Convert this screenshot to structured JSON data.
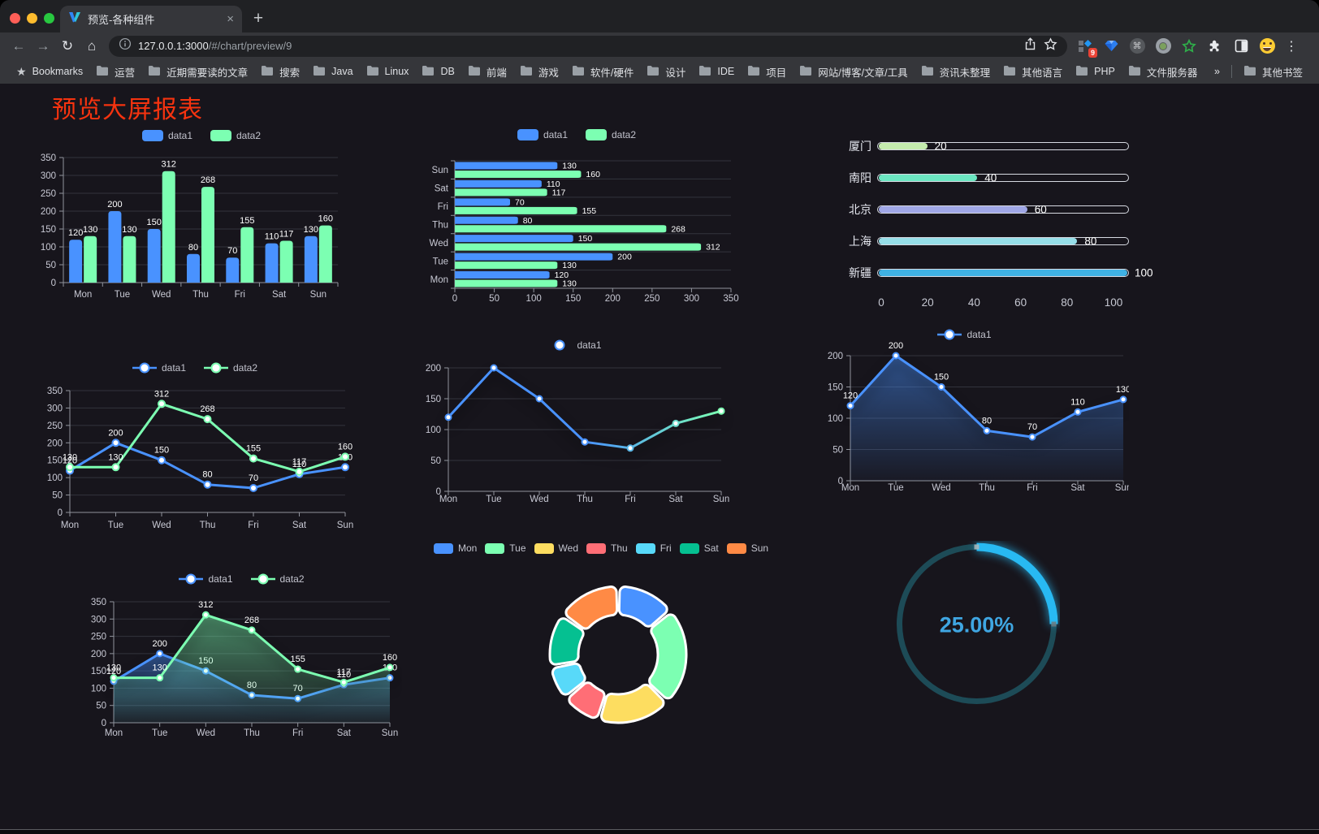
{
  "browser": {
    "tab_title": "预览-各种组件",
    "tab_close": "×",
    "new_tab": "+",
    "url_host": "127.0.0.1:3000",
    "url_path": "/#/chart/preview/9",
    "extension_badge": "9",
    "bookmarks_label": "Bookmarks",
    "bookmark_folders": [
      "运营",
      "近期需要读的文章",
      "搜索",
      "Java",
      "Linux",
      "DB",
      "前端",
      "游戏",
      "软件/硬件",
      "设计",
      "IDE",
      "项目",
      "网站/博客/文章/工具",
      "资讯未整理",
      "其他语言",
      "PHP",
      "文件服务器"
    ],
    "bookmarks_overflow": "»",
    "other_bookmarks": "其他书签"
  },
  "page": {
    "title": "预览大屏报表",
    "title_color": "#f6330f",
    "background": "#17151c"
  },
  "chart_data": [
    {
      "id": "grouped-bar-chart",
      "type": "bar",
      "categories": [
        "Mon",
        "Tue",
        "Wed",
        "Thu",
        "Fri",
        "Sat",
        "Sun"
      ],
      "series": [
        {
          "name": "data1",
          "color": "#4992ff",
          "values": [
            120,
            200,
            150,
            80,
            70,
            110,
            130
          ]
        },
        {
          "name": "data2",
          "color": "#7cffb2",
          "values": [
            130,
            130,
            312,
            268,
            155,
            117,
            160
          ]
        }
      ],
      "ylim": [
        0,
        350
      ],
      "ytick": 50,
      "value_labels": true,
      "legend_position": "top",
      "grid": true
    },
    {
      "id": "horizontal-bar-chart",
      "type": "hbar",
      "categories": [
        "Mon",
        "Tue",
        "Wed",
        "Thu",
        "Fri",
        "Sat",
        "Sun"
      ],
      "rows_top_to_bottom": [
        "Sun",
        "Sat",
        "Fri",
        "Thu",
        "Wed",
        "Tue",
        "Mon"
      ],
      "series": [
        {
          "name": "data1",
          "color": "#4992ff",
          "values": [
            120,
            200,
            150,
            80,
            70,
            110,
            130
          ]
        },
        {
          "name": "data2",
          "color": "#7cffb2",
          "values": [
            130,
            130,
            312,
            268,
            155,
            117,
            160
          ]
        }
      ],
      "xlim": [
        0,
        350
      ],
      "xtick": 50,
      "value_labels": true,
      "legend_position": "top",
      "grid": true
    },
    {
      "id": "progress-bars",
      "type": "progress",
      "rows": [
        {
          "label": "厦门",
          "value": 20,
          "color": "#c4ebad"
        },
        {
          "label": "南阳",
          "value": 40,
          "color": "#6be6c1"
        },
        {
          "label": "北京",
          "value": 60,
          "color": "#a0a7e6"
        },
        {
          "label": "上海",
          "value": 80,
          "color": "#96dee8"
        },
        {
          "label": "新疆",
          "value": 100,
          "color": "#3fb1e3"
        }
      ],
      "max": 100,
      "xticks": [
        0,
        20,
        40,
        60,
        80,
        100
      ]
    },
    {
      "id": "two-series-line-chart",
      "type": "line",
      "categories": [
        "Mon",
        "Tue",
        "Wed",
        "Thu",
        "Fri",
        "Sat",
        "Sun"
      ],
      "series": [
        {
          "name": "data1",
          "color": "#4992ff",
          "values": [
            120,
            200,
            150,
            80,
            70,
            110,
            130
          ]
        },
        {
          "name": "data2",
          "color": "#7cffb2",
          "values": [
            130,
            130,
            312,
            268,
            155,
            117,
            160
          ]
        }
      ],
      "ylim": [
        0,
        350
      ],
      "ytick": 50,
      "value_labels": true,
      "markers": true,
      "legend_position": "top",
      "grid": true
    },
    {
      "id": "gradient-line-chart",
      "type": "line",
      "categories": [
        "Mon",
        "Tue",
        "Wed",
        "Thu",
        "Fri",
        "Sat",
        "Sun"
      ],
      "series": [
        {
          "name": "data1",
          "color": "#4992ff",
          "gradient": [
            "#4992ff",
            "#7cffb2"
          ],
          "values": [
            120,
            200,
            150,
            80,
            70,
            110,
            130
          ]
        }
      ],
      "ylim": [
        0,
        200
      ],
      "ytick": 50,
      "value_labels": false,
      "markers": true,
      "shadow": true,
      "legend_position": "top",
      "grid": true
    },
    {
      "id": "area-line-chart",
      "type": "line",
      "categories": [
        "Mon",
        "Tue",
        "Wed",
        "Thu",
        "Fri",
        "Sat",
        "Sun"
      ],
      "series": [
        {
          "name": "data1",
          "color": "#4992ff",
          "area": true,
          "values": [
            120,
            200,
            150,
            80,
            70,
            110,
            130
          ]
        }
      ],
      "ylim": [
        0,
        200
      ],
      "ytick": 50,
      "value_labels": true,
      "markers": true,
      "shadow": true,
      "legend_position": "top",
      "grid": true
    },
    {
      "id": "two-series-area-line-chart",
      "type": "line",
      "categories": [
        "Mon",
        "Tue",
        "Wed",
        "Thu",
        "Fri",
        "Sat",
        "Sun"
      ],
      "series": [
        {
          "name": "data1",
          "color": "#4992ff",
          "area": true,
          "values": [
            120,
            200,
            150,
            80,
            70,
            110,
            130
          ]
        },
        {
          "name": "data2",
          "color": "#7cffb2",
          "area": true,
          "values": [
            130,
            130,
            312,
            268,
            155,
            117,
            160
          ]
        }
      ],
      "ylim": [
        0,
        350
      ],
      "ytick": 50,
      "value_labels": true,
      "markers": true,
      "shadow": true,
      "legend_position": "top",
      "grid": true
    },
    {
      "id": "donut-chart",
      "type": "donut",
      "legend": [
        "Mon",
        "Tue",
        "Wed",
        "Thu",
        "Fri",
        "Sat",
        "Sun"
      ],
      "values": [
        120,
        200,
        150,
        80,
        70,
        110,
        130
      ],
      "colors": [
        "#4992ff",
        "#7cffb2",
        "#fddd60",
        "#ff6e76",
        "#58d9f9",
        "#05c091",
        "#ff8a45"
      ],
      "border_color": "#ffffff",
      "legend_position": "top"
    },
    {
      "id": "gauge-chart",
      "type": "gauge",
      "percent": 25,
      "label": "25.00%",
      "arc_color": "#28b9f2",
      "track_color": "#1d4b57",
      "text_color": "#3fa6e2"
    }
  ]
}
